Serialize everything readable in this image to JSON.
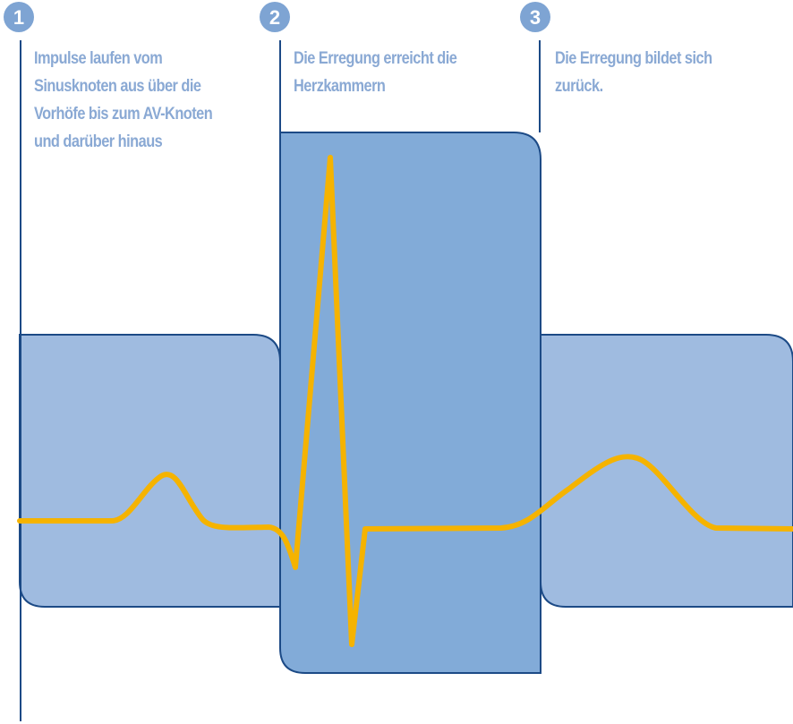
{
  "colors": {
    "background": "#ffffff",
    "panel_light": "#9fbbe0",
    "panel_dark": "#82abd8",
    "panel_border": "#1c4a86",
    "marker_line": "#1c4a86",
    "badge": "#7ea4d3",
    "badge_text": "#ffffff",
    "text": "#8aa9d4",
    "ecg_trace": "#f5b300"
  },
  "phases": [
    {
      "number": "1",
      "lines": [
        "Impulse laufen vom",
        "Sinusknoten aus über die",
        "Vorhöfe bis zum AV-Knoten",
        "und darüber hinaus"
      ]
    },
    {
      "number": "2",
      "lines": [
        "Die Erregung erreicht die",
        "Herzkammern"
      ]
    },
    {
      "number": "3",
      "lines": [
        "Die Erregung bildet sich",
        "zurück."
      ]
    }
  ]
}
